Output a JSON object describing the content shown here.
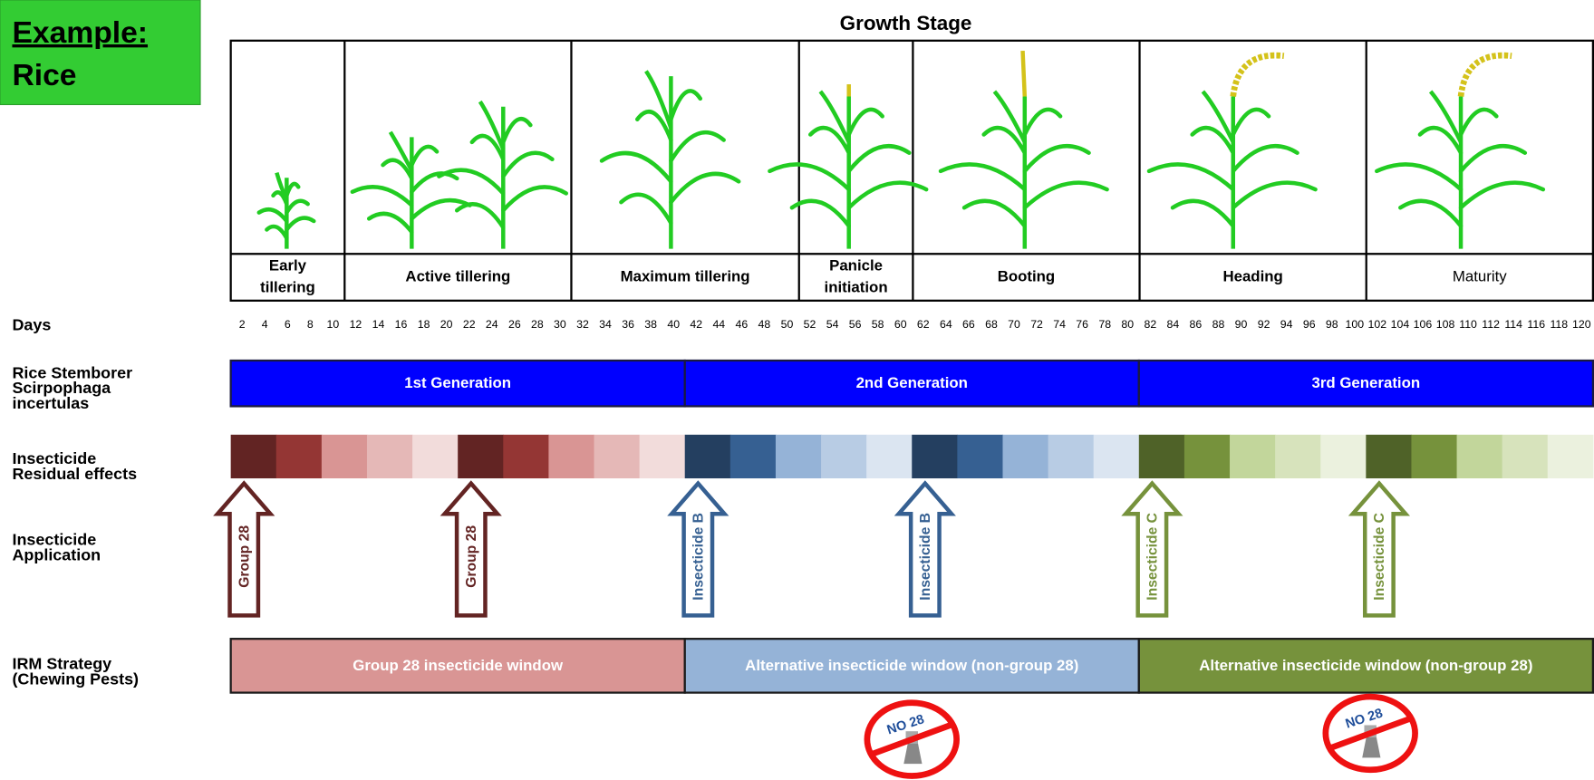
{
  "badge": {
    "title": "Example:",
    "crop": "Rice"
  },
  "header": {
    "title": "Growth Stage"
  },
  "stages": [
    [
      "Early",
      "tillering"
    ],
    [
      "Active tillering"
    ],
    [
      "Maximum tillering"
    ],
    [
      "Panicle",
      "initiation"
    ],
    [
      "Booting"
    ],
    [
      "Heading"
    ],
    [
      "Maturity"
    ]
  ],
  "row_labels": [
    [
      "Days"
    ],
    [
      "Rice Stemborer",
      "Scirpophaga",
      "incertulas"
    ],
    [
      "Insecticide",
      "Residual effects"
    ],
    [
      "Insecticide",
      "Application"
    ],
    [
      "IRM Strategy",
      "(Chewing Pests)"
    ]
  ],
  "days": [
    2,
    4,
    6,
    8,
    10,
    12,
    14,
    16,
    18,
    20,
    22,
    24,
    26,
    28,
    30,
    32,
    34,
    36,
    38,
    40,
    42,
    44,
    46,
    48,
    50,
    52,
    54,
    56,
    58,
    60,
    62,
    64,
    66,
    68,
    70,
    72,
    74,
    76,
    78,
    80,
    82,
    84,
    86,
    88,
    90,
    92,
    94,
    96,
    98,
    100,
    102,
    104,
    106,
    108,
    110,
    112,
    114,
    116,
    118,
    120
  ],
  "generations": [
    "1st Generation",
    "2nd Generation",
    "3rd Generation"
  ],
  "applications": [
    "Group 28",
    "Group 28",
    "Insecticide B",
    "Insecticide B",
    "Insecticide C",
    "Insecticide C"
  ],
  "irm_windows": [
    "Group 28 insecticide window",
    "Alternative insecticide window (non-group 28)",
    "Alternative insecticide window (non-group 28)"
  ],
  "no28_signs": [
    "NO 28",
    "NO 28"
  ]
}
